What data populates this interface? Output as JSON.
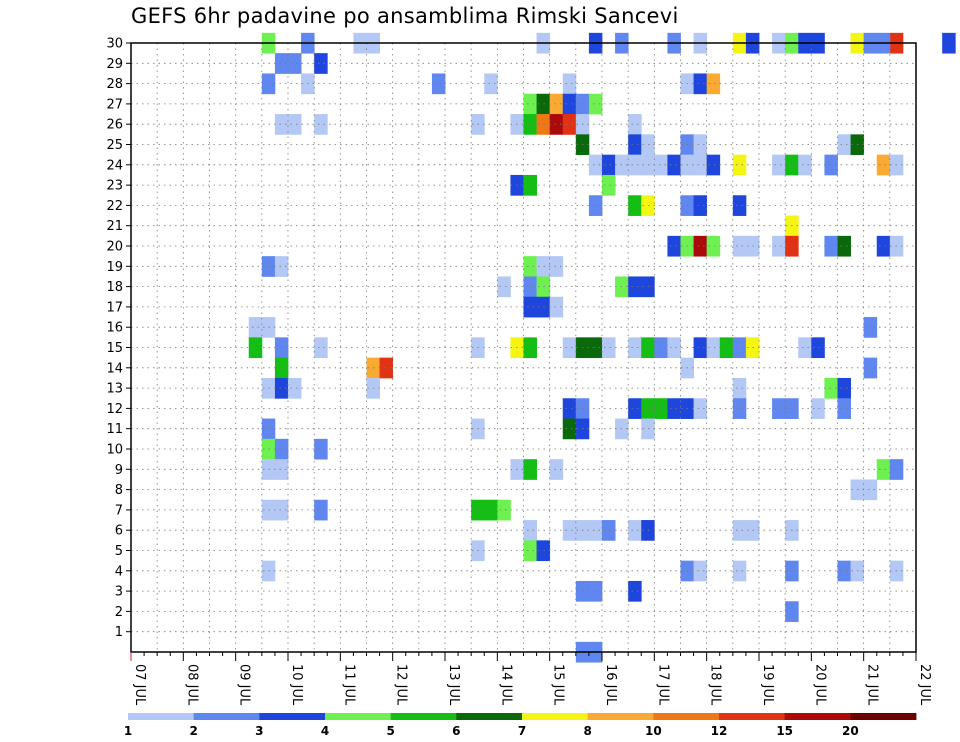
{
  "chart_data": {
    "type": "heatmap",
    "title": "GEFS 6hr padavine po ansamblima Rimski Sancevi",
    "x_ticks": [
      "07 JUL",
      "08 JUL",
      "09 JUL",
      "10 JUL",
      "11 JUL",
      "12 JUL",
      "13 JUL",
      "14 JUL",
      "15 JUL",
      "16 JUL",
      "17 JUL",
      "18 JUL",
      "19 JUL",
      "20 JUL",
      "21 JUL",
      "22 JUL"
    ],
    "y_ticks": [
      1,
      2,
      3,
      4,
      5,
      6,
      7,
      8,
      9,
      10,
      11,
      12,
      13,
      14,
      15,
      16,
      17,
      18,
      19,
      20,
      21,
      22,
      23,
      24,
      25,
      26,
      27,
      28,
      29,
      30
    ],
    "ylim": [
      0,
      30
    ],
    "x_range": [
      "07 JUL 00",
      "22 JUL 00"
    ],
    "time_step_hours": 6,
    "grid": true,
    "legend": {
      "placement": "bottom",
      "labels": [
        "1",
        "2",
        "3",
        "4",
        "5",
        "6",
        "7",
        "8",
        "10",
        "12",
        "15",
        "20"
      ],
      "colors": [
        "#b4c8f5",
        "#5f87ef",
        "#1e46dc",
        "#6ef050",
        "#14be14",
        "#0a690a",
        "#f5f514",
        "#faaa32",
        "#f07814",
        "#e13214",
        "#aa0a0a",
        "#6e0000"
      ]
    },
    "bins": [
      1,
      2,
      3,
      4,
      5,
      6,
      7,
      8,
      10,
      12,
      15,
      20
    ],
    "note_units": "cells: [member, day, hour_utc, precip_mm]",
    "cells": [
      [
        30,
        "09",
        18,
        4.5
      ],
      [
        30,
        "10",
        12,
        2.5
      ],
      [
        30,
        "11",
        18,
        1.5
      ],
      [
        30,
        "11",
        12,
        1.5
      ],
      [
        30,
        "15",
        0,
        1.5
      ],
      [
        30,
        "16",
        0,
        3.5
      ],
      [
        30,
        "16",
        12,
        2.5
      ],
      [
        30,
        "17",
        12,
        2.5
      ],
      [
        30,
        "18",
        0,
        1.5
      ],
      [
        30,
        "18",
        18,
        7.5
      ],
      [
        30,
        "19",
        0,
        3.5
      ],
      [
        30,
        "19",
        12,
        1.5
      ],
      [
        30,
        "19",
        18,
        4.5
      ],
      [
        30,
        "20",
        0,
        3.5
      ],
      [
        30,
        "20",
        6,
        3.5
      ],
      [
        30,
        "21",
        18,
        12.5
      ],
      [
        30,
        "21",
        0,
        7.5
      ],
      [
        30,
        "21",
        6,
        2.5
      ],
      [
        30,
        "21",
        12,
        2.5
      ],
      [
        30,
        "22",
        18,
        3.5
      ],
      [
        29,
        "10",
        0,
        2.5
      ],
      [
        29,
        "10",
        6,
        2.5
      ],
      [
        29,
        "10",
        18,
        3.5
      ],
      [
        28,
        "09",
        18,
        2.5
      ],
      [
        28,
        "10",
        12,
        1.5
      ],
      [
        28,
        "13",
        0,
        2.5
      ],
      [
        28,
        "14",
        0,
        1.5
      ],
      [
        28,
        "15",
        12,
        1.5
      ],
      [
        28,
        "17",
        18,
        1.5
      ],
      [
        28,
        "18",
        0,
        3.5
      ],
      [
        28,
        "18",
        6,
        9
      ],
      [
        27,
        "14",
        18,
        4.5
      ],
      [
        27,
        "15",
        0,
        6.5
      ],
      [
        27,
        "15",
        6,
        9
      ],
      [
        27,
        "15",
        12,
        3.5
      ],
      [
        27,
        "15",
        18,
        2.5
      ],
      [
        27,
        "16",
        0,
        4.5
      ],
      [
        26,
        "10",
        0,
        1.5
      ],
      [
        26,
        "10",
        6,
        1.5
      ],
      [
        26,
        "10",
        18,
        1.5
      ],
      [
        26,
        "13",
        18,
        1.5
      ],
      [
        26,
        "14",
        12,
        1.5
      ],
      [
        26,
        "14",
        18,
        5.5
      ],
      [
        26,
        "15",
        0,
        11
      ],
      [
        26,
        "15",
        6,
        17
      ],
      [
        26,
        "15",
        12,
        13
      ],
      [
        26,
        "15",
        18,
        1.5
      ],
      [
        26,
        "16",
        18,
        1.5
      ],
      [
        25,
        "15",
        18,
        6.5
      ],
      [
        25,
        "16",
        18,
        3.5
      ],
      [
        25,
        "17",
        0,
        1.5
      ],
      [
        25,
        "17",
        18,
        2.5
      ],
      [
        25,
        "18",
        0,
        1.5
      ],
      [
        25,
        "20",
        18,
        1.5
      ],
      [
        25,
        "21",
        0,
        6.5
      ],
      [
        24,
        "16",
        0,
        1.5
      ],
      [
        24,
        "16",
        6,
        3.5
      ],
      [
        24,
        "16",
        12,
        1.5
      ],
      [
        24,
        "16",
        18,
        1.5
      ],
      [
        24,
        "17",
        0,
        1.5
      ],
      [
        24,
        "17",
        6,
        1.5
      ],
      [
        24,
        "17",
        12,
        3.5
      ],
      [
        24,
        "17",
        18,
        1.5
      ],
      [
        24,
        "18",
        0,
        1.5
      ],
      [
        24,
        "18",
        6,
        3.5
      ],
      [
        24,
        "18",
        18,
        7.5
      ],
      [
        24,
        "19",
        12,
        1.5
      ],
      [
        24,
        "19",
        18,
        5.5
      ],
      [
        24,
        "20",
        0,
        1.5
      ],
      [
        24,
        "20",
        12,
        2.5
      ],
      [
        24,
        "21",
        12,
        9
      ],
      [
        24,
        "21",
        18,
        1.5
      ],
      [
        23,
        "14",
        12,
        3.5
      ],
      [
        23,
        "14",
        18,
        5.5
      ],
      [
        23,
        "16",
        6,
        4.5
      ],
      [
        22,
        "16",
        0,
        2.5
      ],
      [
        22,
        "16",
        18,
        5.5
      ],
      [
        22,
        "17",
        0,
        7.5
      ],
      [
        22,
        "17",
        18,
        2.5
      ],
      [
        22,
        "18",
        0,
        3.5
      ],
      [
        22,
        "18",
        18,
        3.5
      ],
      [
        21,
        "19",
        18,
        7.5
      ],
      [
        20,
        "17",
        12,
        3.5
      ],
      [
        20,
        "17",
        18,
        4.5
      ],
      [
        20,
        "18",
        0,
        17
      ],
      [
        20,
        "18",
        6,
        4.5
      ],
      [
        20,
        "18",
        18,
        1.5
      ],
      [
        20,
        "19",
        0,
        1.5
      ],
      [
        20,
        "19",
        12,
        1.5
      ],
      [
        20,
        "19",
        18,
        13
      ],
      [
        20,
        "20",
        12,
        2.5
      ],
      [
        20,
        "20",
        18,
        6.5
      ],
      [
        20,
        "21",
        12,
        3.5
      ],
      [
        20,
        "21",
        18,
        1.5
      ],
      [
        19,
        "09",
        18,
        2.5
      ],
      [
        19,
        "10",
        0,
        1.5
      ],
      [
        19,
        "14",
        18,
        4.5
      ],
      [
        19,
        "15",
        0,
        1.5
      ],
      [
        19,
        "15",
        6,
        1.5
      ],
      [
        18,
        "14",
        6,
        1.5
      ],
      [
        18,
        "14",
        18,
        2.5
      ],
      [
        18,
        "15",
        0,
        4.5
      ],
      [
        18,
        "16",
        12,
        4.5
      ],
      [
        18,
        "16",
        18,
        3.5
      ],
      [
        18,
        "17",
        0,
        3.5
      ],
      [
        17,
        "14",
        18,
        3.5
      ],
      [
        17,
        "15",
        0,
        3.5
      ],
      [
        17,
        "15",
        6,
        1.5
      ],
      [
        16,
        "09",
        12,
        1.5
      ],
      [
        16,
        "09",
        18,
        1.5
      ],
      [
        16,
        "21",
        6,
        2.5
      ],
      [
        15,
        "09",
        12,
        5.5
      ],
      [
        15,
        "10",
        0,
        2.5
      ],
      [
        15,
        "10",
        18,
        1.5
      ],
      [
        15,
        "13",
        18,
        1.5
      ],
      [
        15,
        "14",
        12,
        7.5
      ],
      [
        15,
        "14",
        18,
        5.5
      ],
      [
        15,
        "15",
        12,
        1.5
      ],
      [
        15,
        "15",
        18,
        6.5
      ],
      [
        15,
        "16",
        0,
        6.5
      ],
      [
        15,
        "16",
        6,
        1.5
      ],
      [
        15,
        "16",
        18,
        1.5
      ],
      [
        15,
        "17",
        0,
        5.5
      ],
      [
        15,
        "17",
        6,
        2.5
      ],
      [
        15,
        "17",
        12,
        1.5
      ],
      [
        15,
        "18",
        0,
        3.5
      ],
      [
        15,
        "18",
        6,
        1.5
      ],
      [
        15,
        "18",
        12,
        5.5
      ],
      [
        15,
        "18",
        18,
        2.5
      ],
      [
        15,
        "19",
        0,
        7.5
      ],
      [
        15,
        "20",
        0,
        1.5
      ],
      [
        15,
        "20",
        6,
        3.5
      ],
      [
        14,
        "10",
        0,
        5.5
      ],
      [
        14,
        "11",
        18,
        9
      ],
      [
        14,
        "12",
        0,
        13
      ],
      [
        14,
        "17",
        18,
        1.5
      ],
      [
        14,
        "21",
        6,
        2.5
      ],
      [
        13,
        "09",
        18,
        1.5
      ],
      [
        13,
        "10",
        0,
        3.5
      ],
      [
        13,
        "10",
        6,
        1.5
      ],
      [
        13,
        "11",
        18,
        1.5
      ],
      [
        13,
        "18",
        18,
        1.5
      ],
      [
        13,
        "20",
        12,
        4.5
      ],
      [
        13,
        "20",
        18,
        3.5
      ],
      [
        12,
        "15",
        12,
        3.5
      ],
      [
        12,
        "15",
        18,
        2.5
      ],
      [
        12,
        "16",
        18,
        3.5
      ],
      [
        12,
        "17",
        0,
        5.5
      ],
      [
        12,
        "17",
        6,
        5.5
      ],
      [
        12,
        "17",
        12,
        3.5
      ],
      [
        12,
        "17",
        18,
        3.5
      ],
      [
        12,
        "18",
        0,
        1.5
      ],
      [
        12,
        "18",
        18,
        2.5
      ],
      [
        12,
        "19",
        12,
        2.5
      ],
      [
        12,
        "19",
        18,
        2.5
      ],
      [
        12,
        "20",
        6,
        1.5
      ],
      [
        12,
        "20",
        18,
        2.5
      ],
      [
        11,
        "09",
        18,
        2.5
      ],
      [
        11,
        "13",
        18,
        1.5
      ],
      [
        11,
        "15",
        12,
        6.5
      ],
      [
        11,
        "15",
        18,
        3.5
      ],
      [
        11,
        "16",
        12,
        1.5
      ],
      [
        11,
        "17",
        0,
        1.5
      ],
      [
        10,
        "09",
        18,
        4.5
      ],
      [
        10,
        "10",
        0,
        2.5
      ],
      [
        10,
        "10",
        18,
        2.5
      ],
      [
        9,
        "09",
        18,
        1.5
      ],
      [
        9,
        "10",
        0,
        1.5
      ],
      [
        9,
        "14",
        12,
        1.5
      ],
      [
        9,
        "14",
        18,
        5.5
      ],
      [
        9,
        "15",
        6,
        1.5
      ],
      [
        9,
        "21",
        12,
        4.5
      ],
      [
        9,
        "21",
        18,
        2.5
      ],
      [
        8,
        "21",
        0,
        1.5
      ],
      [
        8,
        "21",
        6,
        1.5
      ],
      [
        7,
        "09",
        18,
        1.5
      ],
      [
        7,
        "10",
        0,
        1.5
      ],
      [
        7,
        "10",
        18,
        2.5
      ],
      [
        7,
        "13",
        18,
        5.5
      ],
      [
        7,
        "14",
        0,
        5.5
      ],
      [
        7,
        "14",
        6,
        4.5
      ],
      [
        6,
        "14",
        18,
        1.5
      ],
      [
        6,
        "15",
        12,
        1.5
      ],
      [
        6,
        "15",
        18,
        1.5
      ],
      [
        6,
        "16",
        0,
        1.5
      ],
      [
        6,
        "16",
        6,
        2.5
      ],
      [
        6,
        "16",
        18,
        1.5
      ],
      [
        6,
        "17",
        0,
        3.5
      ],
      [
        6,
        "18",
        18,
        1.5
      ],
      [
        6,
        "19",
        0,
        1.5
      ],
      [
        6,
        "19",
        18,
        1.5
      ],
      [
        5,
        "13",
        18,
        1.5
      ],
      [
        5,
        "14",
        18,
        4.5
      ],
      [
        5,
        "15",
        0,
        3.5
      ],
      [
        4,
        "09",
        18,
        1.5
      ],
      [
        4,
        "17",
        18,
        2.5
      ],
      [
        4,
        "18",
        0,
        1.5
      ],
      [
        4,
        "18",
        18,
        1.5
      ],
      [
        4,
        "19",
        18,
        2.5
      ],
      [
        4,
        "20",
        18,
        2.5
      ],
      [
        4,
        "21",
        0,
        1.5
      ],
      [
        4,
        "21",
        18,
        1.5
      ],
      [
        3,
        "15",
        18,
        2.5
      ],
      [
        3,
        "16",
        0,
        2.5
      ],
      [
        3,
        "16",
        18,
        3.5
      ],
      [
        2,
        "19",
        18,
        2.5
      ],
      [
        0,
        "15",
        18,
        2.5
      ],
      [
        0,
        "16",
        0,
        2.5
      ]
    ]
  }
}
